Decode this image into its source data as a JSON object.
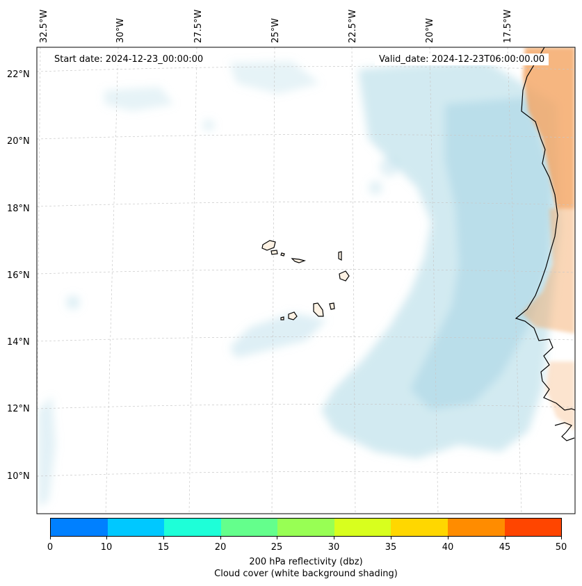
{
  "header": {
    "start_date": "Start date: 2024-12-23_00:00:00",
    "valid_date": "Valid_date: 2024-12-23T06:00:00.00"
  },
  "map": {
    "longitude_labels": [
      "32.5°W",
      "30°W",
      "27.5°W",
      "25°W",
      "22.5°W",
      "20°W",
      "17.5°W"
    ],
    "latitude_labels": [
      "22°N",
      "20°N",
      "18°N",
      "16°N",
      "14°N",
      "12°N",
      "10°N"
    ],
    "colors": {
      "cloud": "#add8e6",
      "land_reflectivity": "#f4a460",
      "coastline": "#000000",
      "gridline": "#c8c8c8"
    }
  },
  "colorbar": {
    "colors": [
      "#0080ff",
      "#00c8ff",
      "#1effd8",
      "#64ff8c",
      "#98ff54",
      "#d8ff1e",
      "#ffd700",
      "#ff8c00",
      "#ff4500"
    ],
    "tick_labels": [
      "0",
      "10",
      "15",
      "20",
      "25",
      "30",
      "35",
      "40",
      "45",
      "50"
    ],
    "label_line1": "200 hPa reflectivity (dbz)",
    "label_line2": "Cloud cover (white background shading)"
  }
}
